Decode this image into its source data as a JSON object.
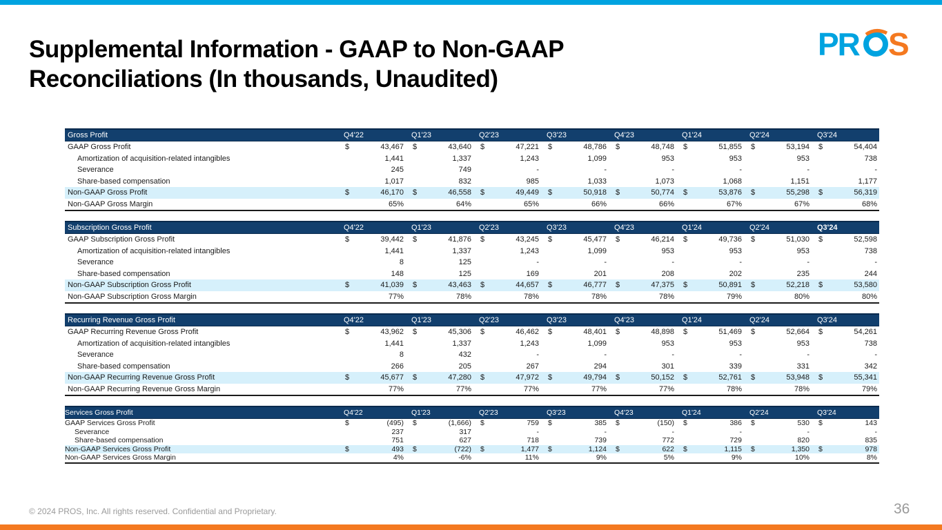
{
  "title": {
    "line1": "Supplemental Information - GAAP to Non-GAAP",
    "line2": "Reconciliations (In thousands, Unaudited)"
  },
  "logo": {
    "text": "PROS",
    "color": "#00a3e0",
    "accent": "#f47920"
  },
  "footer": {
    "copyright": "© 2024 PROS, Inc. All rights reserved. Confidential and Proprietary.",
    "page_number": "36"
  },
  "colors": {
    "header_bg": "#123f6d",
    "highlight_bg": "#d6f0fb",
    "top_bar": "#00a3e0",
    "bottom_bar": "#f47920"
  },
  "quarters": [
    "Q4'22",
    "Q1'23",
    "Q2'23",
    "Q3'23",
    "Q4'23",
    "Q1'24",
    "Q2'24",
    "Q3'24"
  ],
  "tables": [
    {
      "header": "Gross Profit",
      "rows": [
        {
          "label": "GAAP Gross Profit",
          "dollar": true,
          "values": [
            "43,467",
            "43,640",
            "47,221",
            "48,786",
            "48,748",
            "51,855",
            "53,194",
            "54,404"
          ]
        },
        {
          "label": "Amortization of acquisition-related intangibles",
          "values": [
            "1,441",
            "1,337",
            "1,243",
            "1,099",
            "953",
            "953",
            "953",
            "738"
          ]
        },
        {
          "label": "Severance",
          "values": [
            "245",
            "749",
            "-",
            "-",
            "-",
            "-",
            "-",
            "-"
          ]
        },
        {
          "label": "Share-based compensation",
          "values": [
            "1,017",
            "832",
            "985",
            "1,033",
            "1,073",
            "1,068",
            "1,151",
            "1,177"
          ]
        },
        {
          "label": "Non-GAAP Gross Profit",
          "dollar": true,
          "values": [
            "46,170",
            "46,558",
            "49,449",
            "50,918",
            "50,774",
            "53,876",
            "55,298",
            "56,319"
          ]
        },
        {
          "label": "Non-GAAP Gross Margin",
          "values": [
            "65%",
            "64%",
            "65%",
            "66%",
            "66%",
            "67%",
            "67%",
            "68%"
          ]
        }
      ]
    },
    {
      "header": "Subscription Gross Profit",
      "rows": [
        {
          "label": "GAAP Subscription Gross Profit",
          "dollar": true,
          "values": [
            "39,442",
            "41,876",
            "43,245",
            "45,477",
            "46,214",
            "49,736",
            "51,030",
            "52,598"
          ]
        },
        {
          "label": "Amortization of acquisition-related intangibles",
          "values": [
            "1,441",
            "1,337",
            "1,243",
            "1,099",
            "953",
            "953",
            "953",
            "738"
          ]
        },
        {
          "label": "Severance",
          "values": [
            "8",
            "125",
            "-",
            "-",
            "-",
            "-",
            "-",
            "-"
          ]
        },
        {
          "label": "Share-based compensation",
          "values": [
            "148",
            "125",
            "169",
            "201",
            "208",
            "202",
            "235",
            "244"
          ]
        },
        {
          "label": "Non-GAAP Subscription Gross Profit",
          "dollar": true,
          "values": [
            "41,039",
            "43,463",
            "44,657",
            "46,777",
            "47,375",
            "50,891",
            "52,218",
            "53,580"
          ]
        },
        {
          "label": "Non-GAAP Subscription Gross Margin",
          "values": [
            "77%",
            "78%",
            "78%",
            "78%",
            "78%",
            "79%",
            "80%",
            "80%"
          ]
        }
      ]
    },
    {
      "header": "Recurring Revenue Gross Profit",
      "rows": [
        {
          "label": "GAAP Recurring Revenue Gross Profit",
          "dollar": true,
          "values": [
            "43,962",
            "45,306",
            "46,462",
            "48,401",
            "48,898",
            "51,469",
            "52,664",
            "54,261"
          ]
        },
        {
          "label": "Amortization of acquisition-related intangibles",
          "values": [
            "1,441",
            "1,337",
            "1,243",
            "1,099",
            "953",
            "953",
            "953",
            "738"
          ]
        },
        {
          "label": "Severance",
          "values": [
            "8",
            "432",
            "-",
            "-",
            "-",
            "-",
            "-",
            "-"
          ]
        },
        {
          "label": "Share-based compensation",
          "values": [
            "266",
            "205",
            "267",
            "294",
            "301",
            "339",
            "331",
            "342"
          ]
        },
        {
          "label": "Non-GAAP Recurring Revenue Gross Profit",
          "dollar": true,
          "values": [
            "45,677",
            "47,280",
            "47,972",
            "49,794",
            "50,152",
            "52,761",
            "53,948",
            "55,341"
          ]
        },
        {
          "label": "Non-GAAP Recurring Revenue Gross Margin",
          "values": [
            "77%",
            "77%",
            "77%",
            "77%",
            "77%",
            "78%",
            "78%",
            "79%"
          ]
        }
      ]
    },
    {
      "header": "Services Gross Profit",
      "rows": [
        {
          "label": "GAAP Services Gross Profit",
          "dollar": true,
          "values": [
            "(495)",
            "(1,666)",
            "759",
            "385",
            "(150)",
            "386",
            "530",
            "143"
          ]
        },
        {
          "label": "Severance",
          "values": [
            "237",
            "317",
            "-",
            "-",
            "-",
            "-",
            "-",
            "-"
          ]
        },
        {
          "label": "Share-based compensation",
          "values": [
            "751",
            "627",
            "718",
            "739",
            "772",
            "729",
            "820",
            "835"
          ]
        },
        {
          "label": "Non-GAAP Services Gross Profit",
          "dollar": true,
          "values": [
            "493",
            "(722)",
            "1,477",
            "1,124",
            "622",
            "1,115",
            "1,350",
            "978"
          ]
        },
        {
          "label": "Non-GAAP Services Gross Margin",
          "values": [
            "4%",
            "-6%",
            "11%",
            "9%",
            "5%",
            "9%",
            "10%",
            "8%"
          ]
        }
      ]
    }
  ]
}
